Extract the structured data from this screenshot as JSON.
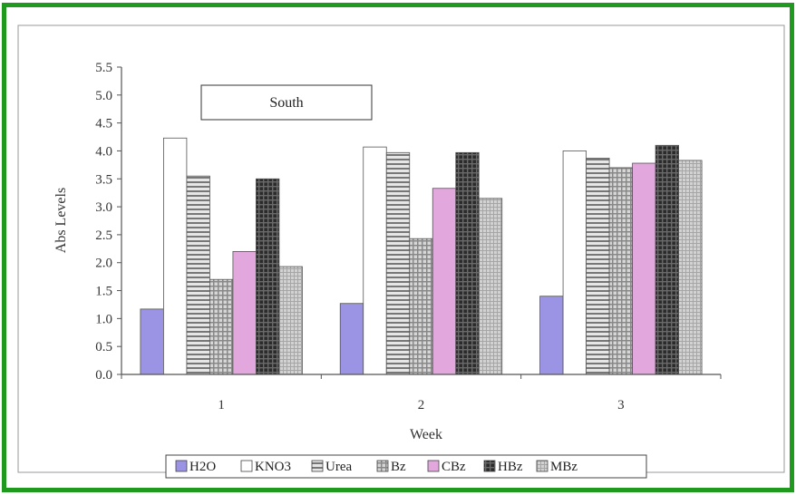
{
  "chart_data": {
    "type": "bar",
    "title": "South",
    "xlabel": "Week",
    "ylabel": "Abs Levels",
    "categories": [
      "1",
      "2",
      "3"
    ],
    "ylim": [
      0,
      5.5
    ],
    "yticks": [
      "0.0",
      "0.5",
      "1.0",
      "1.5",
      "2.0",
      "2.5",
      "3.0",
      "3.5",
      "4.0",
      "4.5",
      "5.0",
      "5.5"
    ],
    "grid": false,
    "legend_position": "bottom",
    "series": [
      {
        "name": "H2O",
        "values": [
          1.17,
          1.27,
          1.4
        ],
        "color": "#9b93e3",
        "pattern": "solid"
      },
      {
        "name": "KNO3",
        "values": [
          4.23,
          4.07,
          4.0
        ],
        "color": "#ffffff",
        "pattern": "solid"
      },
      {
        "name": "Urea",
        "values": [
          3.55,
          3.97,
          3.87
        ],
        "color": "#8a8a8a",
        "pattern": "hlines"
      },
      {
        "name": "Bz",
        "values": [
          1.7,
          2.43,
          3.7
        ],
        "color": "#9a9a9a",
        "pattern": "grid"
      },
      {
        "name": "CBz",
        "values": [
          2.2,
          3.33,
          3.78
        ],
        "color": "#e2a8de",
        "pattern": "solid"
      },
      {
        "name": "HBz",
        "values": [
          3.5,
          3.97,
          4.1
        ],
        "color": "#3a3a3a",
        "pattern": "dark"
      },
      {
        "name": "MBz",
        "values": [
          1.93,
          3.15,
          3.83
        ],
        "color": "#b8b8b8",
        "pattern": "fine"
      }
    ]
  }
}
